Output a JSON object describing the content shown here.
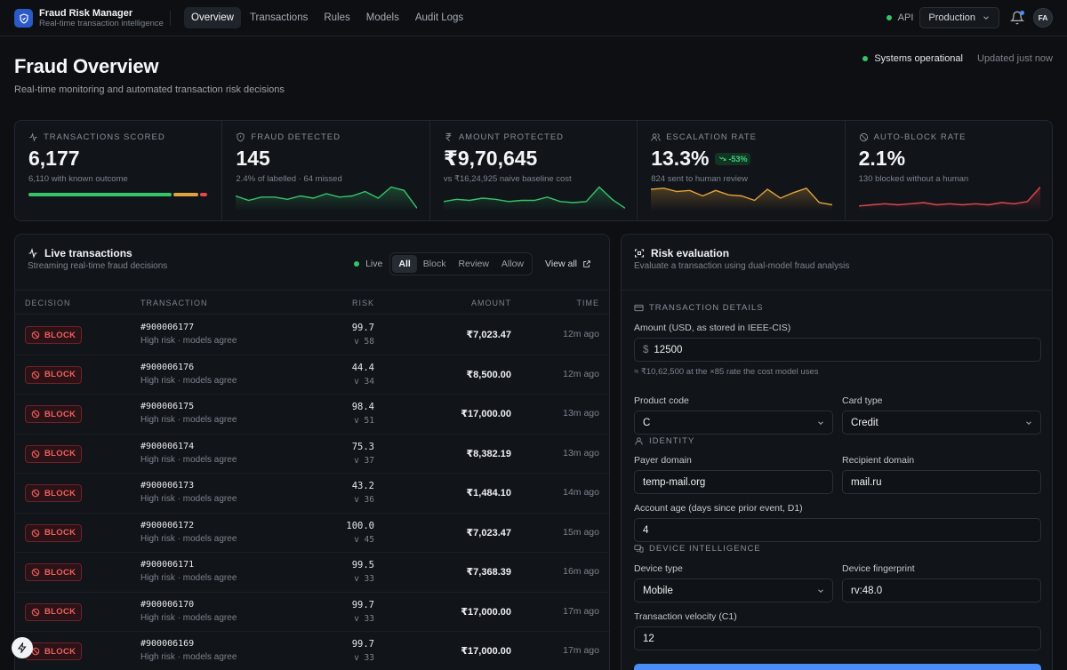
{
  "brand": {
    "title": "Fraud Risk Manager",
    "subtitle": "Real-time transaction intelligence"
  },
  "nav": {
    "tabs": [
      "Overview",
      "Transactions",
      "Rules",
      "Models",
      "Audit Logs"
    ],
    "active": "Overview"
  },
  "header_right": {
    "api_label": "API",
    "environment": "Production",
    "avatar_initials": "FA"
  },
  "page": {
    "title": "Fraud Overview",
    "subtitle": "Real-time monitoring and automated transaction risk decisions",
    "status": "Systems operational",
    "updated": "Updated just now"
  },
  "stats": [
    {
      "label": "TRANSACTIONS SCORED",
      "value": "6,177",
      "sub": "6,110 with known outcome",
      "bar": [
        0.8,
        0.14,
        0.04
      ]
    },
    {
      "label": "FRAUD DETECTED",
      "value": "145",
      "sub": "2.4% of labelled · 64 missed"
    },
    {
      "label": "AMOUNT PROTECTED",
      "value": "₹9,70,645",
      "sub": "vs ₹16,24,925 naive baseline cost"
    },
    {
      "label": "ESCALATION RATE",
      "value": "13.3%",
      "change": "-53%",
      "sub": "824 sent to human review"
    },
    {
      "label": "AUTO-BLOCK RATE",
      "value": "2.1%",
      "sub": "130 blocked without a human"
    }
  ],
  "colors": {
    "green": "#35c46a",
    "amber": "#e0a23b",
    "red": "#e5484d",
    "accent": "#4b8df8"
  },
  "live": {
    "title": "Live transactions",
    "subtitle": "Streaming real-time fraud decisions",
    "live_label": "Live",
    "filters": [
      "All",
      "Block",
      "Review",
      "Allow"
    ],
    "active_filter": "All",
    "view_all": "View all",
    "columns": [
      "DECISION",
      "TRANSACTION",
      "RISK",
      "AMOUNT",
      "TIME"
    ],
    "rows": [
      {
        "decision": "BLOCK",
        "id": "#900006177",
        "desc": "High risk · models agree",
        "risk": "99.7",
        "score": "v 58",
        "amount": "₹7,023.47",
        "time": "12m ago"
      },
      {
        "decision": "BLOCK",
        "id": "#900006176",
        "desc": "High risk · models agree",
        "risk": "44.4",
        "score": "v 34",
        "amount": "₹8,500.00",
        "time": "12m ago"
      },
      {
        "decision": "BLOCK",
        "id": "#900006175",
        "desc": "High risk · models agree",
        "risk": "98.4",
        "score": "v 51",
        "amount": "₹17,000.00",
        "time": "13m ago"
      },
      {
        "decision": "BLOCK",
        "id": "#900006174",
        "desc": "High risk · models agree",
        "risk": "75.3",
        "score": "v 37",
        "amount": "₹8,382.19",
        "time": "13m ago"
      },
      {
        "decision": "BLOCK",
        "id": "#900006173",
        "desc": "High risk · models agree",
        "risk": "43.2",
        "score": "v 36",
        "amount": "₹1,484.10",
        "time": "14m ago"
      },
      {
        "decision": "BLOCK",
        "id": "#900006172",
        "desc": "High risk · models agree",
        "risk": "100.0",
        "score": "v 45",
        "amount": "₹7,023.47",
        "time": "15m ago"
      },
      {
        "decision": "BLOCK",
        "id": "#900006171",
        "desc": "High risk · models agree",
        "risk": "99.5",
        "score": "v 33",
        "amount": "₹7,368.39",
        "time": "16m ago"
      },
      {
        "decision": "BLOCK",
        "id": "#900006170",
        "desc": "High risk · models agree",
        "risk": "99.7",
        "score": "v 33",
        "amount": "₹17,000.00",
        "time": "17m ago"
      },
      {
        "decision": "BLOCK",
        "id": "#900006169",
        "desc": "High risk · models agree",
        "risk": "99.7",
        "score": "v 33",
        "amount": "₹17,000.00",
        "time": "17m ago"
      }
    ]
  },
  "risk": {
    "title": "Risk evaluation",
    "subtitle": "Evaluate a transaction using dual-model fraud analysis",
    "sections": {
      "details": "TRANSACTION DETAILS",
      "identity": "IDENTITY",
      "device": "DEVICE INTELLIGENCE"
    },
    "amount_label": "Amount (USD, as stored in IEEE-CIS)",
    "amount_prefix": "$",
    "amount_value": "12500",
    "amount_hint": "≈ ₹10,62,500 at the ×85 rate the cost model uses",
    "product_label": "Product code",
    "product_value": "C",
    "card_label": "Card type",
    "card_value": "Credit",
    "payer_label": "Payer domain",
    "payer_value": "temp-mail.org",
    "recipient_label": "Recipient domain",
    "recipient_value": "mail.ru",
    "age_label": "Account age (days since prior event, D1)",
    "age_value": "4",
    "device_type_label": "Device type",
    "device_type_value": "Mobile",
    "fingerprint_label": "Device fingerprint",
    "fingerprint_value": "rv:48.0",
    "velocity_label": "Transaction velocity (C1)",
    "velocity_value": "12"
  },
  "sparklines": {
    "fraud": [
      14,
      10,
      13,
      13,
      11,
      14,
      12,
      16,
      13,
      14,
      18,
      12,
      22,
      19,
      3
    ],
    "amount": [
      9,
      11,
      10,
      12,
      11,
      9,
      10,
      10,
      13,
      9,
      8,
      9,
      22,
      11,
      3
    ],
    "escalation": [
      20,
      21,
      18,
      19,
      14,
      19,
      15,
      14,
      10,
      20,
      12,
      17,
      21,
      8,
      6
    ],
    "autoblock": [
      5,
      6,
      7,
      6,
      7,
      8,
      6,
      7,
      6,
      7,
      6,
      8,
      7,
      9,
      22
    ]
  }
}
